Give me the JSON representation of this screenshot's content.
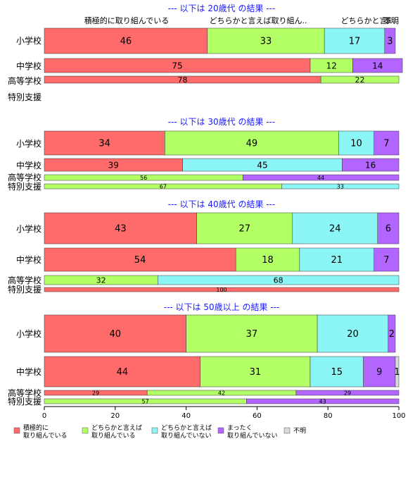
{
  "chart_data": {
    "type": "bar",
    "orientation": "horizontal-stacked-percent",
    "xlim": [
      0,
      100
    ],
    "xticks": [
      "0",
      "20",
      "40",
      "60",
      "80",
      "100"
    ],
    "grid": false,
    "legend_position": "bottom",
    "series": [
      {
        "name": "積極的に\n取り組んでいる",
        "color": "#ff6b6b"
      },
      {
        "name": "どちらかと言えば\n取り組んでいる",
        "color": "#b3ff66"
      },
      {
        "name": "どちらかと言えば\n取り組んでいない",
        "color": "#8cf5f5"
      },
      {
        "name": "まったく\n取り組んでいない",
        "color": "#b266ff"
      },
      {
        "name": "不明",
        "color": "#d9d9d9"
      }
    ],
    "column_headers": [
      "積極的に取り組んでいる",
      "どちらかと言えば取り組ん..",
      "どちらかと言..",
      "ま..",
      "不明"
    ],
    "groups": [
      {
        "title": "--- 以下は 20歳代 の結果 ---",
        "rows": [
          {
            "label": "小学校",
            "values": [
              46,
              33,
              17,
              3,
              0
            ]
          },
          {
            "label": "中学校",
            "values": [
              75,
              12,
              0,
              14,
              0
            ]
          },
          {
            "label": "高等学校",
            "values": [
              78,
              22,
              0,
              0,
              0
            ]
          },
          {
            "label": "特別支援",
            "values": [
              0,
              0,
              0,
              0,
              0
            ]
          }
        ]
      },
      {
        "title": "--- 以下は 30歳代 の結果 ---",
        "rows": [
          {
            "label": "小学校",
            "values": [
              34,
              49,
              10,
              7,
              0
            ]
          },
          {
            "label": "中学校",
            "values": [
              39,
              0,
              45,
              16,
              0
            ]
          },
          {
            "label": "高等学校",
            "values": [
              0,
              56,
              0,
              44,
              0
            ]
          },
          {
            "label": "特別支援",
            "values": [
              0,
              67,
              33,
              0,
              0
            ]
          }
        ]
      },
      {
        "title": "--- 以下は 40歳代 の結果 ---",
        "rows": [
          {
            "label": "小学校",
            "values": [
              43,
              27,
              24,
              6,
              0
            ]
          },
          {
            "label": "中学校",
            "values": [
              54,
              18,
              21,
              7,
              0
            ]
          },
          {
            "label": "高等学校",
            "values": [
              0,
              32,
              68,
              0,
              0
            ]
          },
          {
            "label": "特別支援",
            "values": [
              100,
              0,
              0,
              0,
              0
            ]
          }
        ]
      },
      {
        "title": "--- 以下は 50歳以上 の結果 ---",
        "rows": [
          {
            "label": "小学校",
            "values": [
              40,
              37,
              20,
              2,
              0
            ]
          },
          {
            "label": "中学校",
            "values": [
              44,
              31,
              15,
              9,
              1
            ]
          },
          {
            "label": "高等学校",
            "values": [
              29,
              42,
              0,
              29,
              0
            ]
          },
          {
            "label": "特別支援",
            "values": [
              0,
              57,
              0,
              43,
              0
            ]
          }
        ]
      }
    ]
  }
}
